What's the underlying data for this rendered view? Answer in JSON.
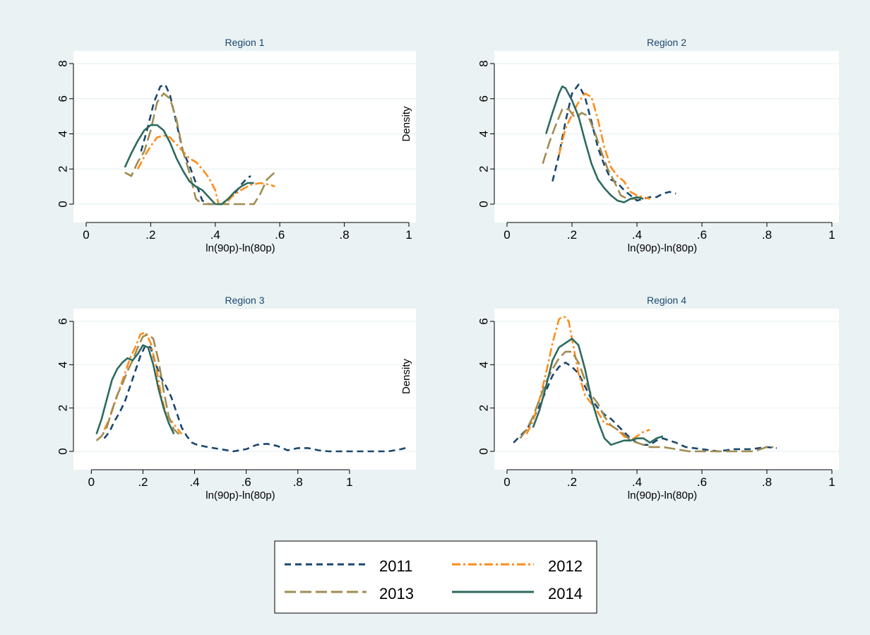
{
  "chart_data": [
    {
      "type": "line",
      "title": "Region 1",
      "xlabel": "ln(90p)-ln(80p)",
      "ylabel": "",
      "xlim": [
        0,
        1
      ],
      "ylim": [
        0,
        8
      ],
      "xticks": [
        0,
        0.2,
        0.4,
        0.6,
        0.8,
        1
      ],
      "xtick_labels": [
        "0",
        ".2",
        ".4",
        ".6",
        ".8",
        "1"
      ],
      "yticks": [
        0,
        2,
        4,
        6,
        8
      ],
      "ytick_labels": [
        "0",
        "2",
        "4",
        "6",
        "8"
      ],
      "grid": true,
      "series": [
        {
          "name": "2011",
          "x": [
            0.17,
            0.19,
            0.21,
            0.23,
            0.245,
            0.26,
            0.28,
            0.3,
            0.32,
            0.34,
            0.36,
            0.38,
            0.4,
            0.42,
            0.44,
            0.46,
            0.48,
            0.5,
            0.51
          ],
          "y": [
            3.0,
            4.3,
            5.8,
            6.7,
            6.8,
            6.2,
            4.6,
            3.0,
            2.2,
            1.2,
            0.2,
            0.0,
            0.0,
            0.0,
            0.2,
            0.6,
            1.1,
            1.5,
            1.6
          ]
        },
        {
          "name": "2012",
          "x": [
            0.16,
            0.18,
            0.2,
            0.22,
            0.24,
            0.26,
            0.28,
            0.3,
            0.32,
            0.34,
            0.36,
            0.38,
            0.4,
            0.41,
            0.43,
            0.45,
            0.48,
            0.51,
            0.54,
            0.57,
            0.585
          ],
          "y": [
            2.0,
            2.7,
            3.3,
            3.8,
            3.9,
            3.8,
            3.4,
            3.0,
            2.6,
            2.4,
            2.0,
            1.5,
            0.8,
            0.0,
            0.0,
            0.4,
            0.8,
            1.1,
            1.2,
            1.1,
            1.0
          ]
        },
        {
          "name": "2013",
          "x": [
            0.12,
            0.14,
            0.16,
            0.18,
            0.2,
            0.22,
            0.24,
            0.26,
            0.28,
            0.3,
            0.32,
            0.34,
            0.36,
            0.38,
            0.4,
            0.44,
            0.48,
            0.5,
            0.52,
            0.54,
            0.56,
            0.59
          ],
          "y": [
            1.8,
            1.6,
            2.4,
            3.0,
            4.2,
            5.8,
            6.3,
            6.0,
            4.8,
            3.0,
            1.8,
            0.3,
            0.0,
            0.0,
            0.0,
            0.0,
            0.0,
            0.0,
            0.0,
            0.6,
            1.4,
            1.9
          ]
        },
        {
          "name": "2014",
          "x": [
            0.12,
            0.14,
            0.16,
            0.18,
            0.2,
            0.22,
            0.24,
            0.26,
            0.28,
            0.3,
            0.32,
            0.34,
            0.36,
            0.38,
            0.4,
            0.42,
            0.44,
            0.46,
            0.48,
            0.5,
            0.52
          ],
          "y": [
            2.1,
            2.9,
            3.6,
            4.2,
            4.5,
            4.5,
            4.2,
            3.5,
            2.6,
            1.9,
            1.3,
            1.0,
            0.8,
            0.4,
            0.0,
            0.0,
            0.3,
            0.7,
            1.0,
            1.2,
            1.2
          ]
        }
      ]
    },
    {
      "type": "line",
      "title": "Region 2",
      "xlabel": "ln(90p)-ln(80p)",
      "ylabel": "Density",
      "xlim": [
        0,
        1
      ],
      "ylim": [
        0,
        8
      ],
      "xticks": [
        0,
        0.2,
        0.4,
        0.6,
        0.8,
        1
      ],
      "xtick_labels": [
        "0",
        ".2",
        ".4",
        ".6",
        ".8",
        "1"
      ],
      "yticks": [
        0,
        2,
        4,
        6,
        8
      ],
      "ytick_labels": [
        "0",
        "2",
        "4",
        "6",
        "8"
      ],
      "grid": true,
      "series": [
        {
          "name": "2011",
          "x": [
            0.14,
            0.16,
            0.18,
            0.2,
            0.22,
            0.24,
            0.26,
            0.28,
            0.3,
            0.32,
            0.34,
            0.36,
            0.38,
            0.4,
            0.42,
            0.44,
            0.46,
            0.48,
            0.5,
            0.52
          ],
          "y": [
            1.3,
            2.8,
            4.7,
            6.3,
            6.8,
            6.1,
            4.7,
            3.2,
            2.2,
            1.4,
            1.2,
            0.8,
            0.5,
            0.2,
            0.3,
            0.4,
            0.4,
            0.6,
            0.7,
            0.6
          ]
        },
        {
          "name": "2012",
          "x": [
            0.16,
            0.18,
            0.2,
            0.22,
            0.24,
            0.26,
            0.28,
            0.3,
            0.32,
            0.34,
            0.36,
            0.38,
            0.4,
            0.42,
            0.44
          ],
          "y": [
            2.8,
            4.3,
            5.1,
            5.8,
            6.3,
            6.1,
            4.8,
            3.2,
            2.1,
            1.6,
            1.3,
            0.7,
            0.5,
            0.4,
            0.3
          ]
        },
        {
          "name": "2013",
          "x": [
            0.11,
            0.13,
            0.15,
            0.17,
            0.19,
            0.21,
            0.23,
            0.25,
            0.27,
            0.29,
            0.31,
            0.33,
            0.35,
            0.37,
            0.39,
            0.41
          ],
          "y": [
            2.3,
            3.5,
            4.5,
            5.4,
            5.4,
            4.9,
            5.2,
            5.0,
            4.1,
            3.0,
            2.0,
            1.3,
            0.5,
            0.3,
            0.3,
            0.4
          ]
        },
        {
          "name": "2014",
          "x": [
            0.12,
            0.14,
            0.16,
            0.17,
            0.18,
            0.2,
            0.22,
            0.24,
            0.26,
            0.28,
            0.3,
            0.32,
            0.34,
            0.36,
            0.38,
            0.4,
            0.42
          ],
          "y": [
            4.0,
            5.2,
            6.3,
            6.7,
            6.6,
            5.9,
            5.0,
            3.6,
            2.3,
            1.4,
            0.9,
            0.5,
            0.2,
            0.1,
            0.3,
            0.4,
            0.3
          ]
        }
      ]
    },
    {
      "type": "line",
      "title": "Region 3",
      "xlabel": "ln(90p)-ln(80p)",
      "ylabel": "",
      "xlim": [
        -0.02,
        1.23
      ],
      "ylim": [
        0,
        6
      ],
      "xticks": [
        0,
        0.2,
        0.4,
        0.6,
        0.8,
        1
      ],
      "xtick_labels": [
        "0",
        ".2",
        ".4",
        ".6",
        ".8",
        "1"
      ],
      "yticks": [
        0,
        2,
        4,
        6
      ],
      "ytick_labels": [
        "0",
        "2",
        "4",
        "6"
      ],
      "grid": true,
      "series": [
        {
          "name": "2011",
          "x": [
            0.05,
            0.07,
            0.09,
            0.11,
            0.13,
            0.15,
            0.17,
            0.19,
            0.21,
            0.23,
            0.25,
            0.27,
            0.29,
            0.31,
            0.33,
            0.35,
            0.37,
            0.39,
            0.41,
            0.45,
            0.5,
            0.55,
            0.6,
            0.64,
            0.68,
            0.72,
            0.76,
            0.8,
            0.84,
            0.88,
            0.92,
            0.96,
            1.0,
            1.05,
            1.1,
            1.15,
            1.2,
            1.23
          ],
          "y": [
            0.6,
            0.9,
            1.4,
            1.8,
            2.3,
            3.0,
            3.7,
            4.4,
            4.9,
            4.8,
            4.0,
            3.4,
            3.0,
            2.5,
            1.8,
            1.1,
            0.7,
            0.4,
            0.3,
            0.2,
            0.1,
            0.0,
            0.1,
            0.3,
            0.35,
            0.25,
            0.05,
            0.15,
            0.15,
            0.05,
            0.0,
            0.0,
            0.0,
            0.0,
            0.0,
            0.0,
            0.1,
            0.2
          ]
        },
        {
          "name": "2012",
          "x": [
            0.05,
            0.07,
            0.09,
            0.11,
            0.13,
            0.15,
            0.17,
            0.19,
            0.21,
            0.23,
            0.25,
            0.27,
            0.29,
            0.31,
            0.33,
            0.35
          ],
          "y": [
            1.0,
            1.5,
            2.2,
            2.9,
            3.6,
            4.3,
            4.8,
            5.4,
            5.5,
            5.0,
            4.0,
            2.6,
            1.7,
            1.4,
            1.1,
            0.8
          ]
        },
        {
          "name": "2013",
          "x": [
            0.02,
            0.04,
            0.06,
            0.08,
            0.1,
            0.12,
            0.14,
            0.16,
            0.18,
            0.2,
            0.22,
            0.24,
            0.26,
            0.28,
            0.3,
            0.32,
            0.34
          ],
          "y": [
            0.5,
            0.7,
            1.1,
            1.9,
            2.6,
            3.1,
            3.7,
            4.2,
            4.8,
            5.3,
            5.4,
            5.2,
            4.2,
            2.8,
            1.6,
            1.0,
            0.8
          ]
        },
        {
          "name": "2014",
          "x": [
            0.02,
            0.04,
            0.06,
            0.08,
            0.1,
            0.12,
            0.14,
            0.16,
            0.18,
            0.2,
            0.22,
            0.24,
            0.26,
            0.28,
            0.3,
            0.32
          ],
          "y": [
            0.8,
            1.5,
            2.4,
            3.3,
            3.8,
            4.1,
            4.3,
            4.2,
            4.5,
            4.9,
            4.8,
            4.0,
            2.9,
            2.0,
            1.3,
            0.8
          ]
        }
      ]
    },
    {
      "type": "line",
      "title": "Region 4",
      "xlabel": "ln(90p)-ln(80p)",
      "ylabel": "Density",
      "xlim": [
        0,
        1
      ],
      "ylim": [
        0,
        6
      ],
      "xticks": [
        0,
        0.2,
        0.4,
        0.6,
        0.8,
        1
      ],
      "xtick_labels": [
        "0",
        ".2",
        ".4",
        ".6",
        ".8",
        "1"
      ],
      "yticks": [
        0,
        2,
        4,
        6
      ],
      "ytick_labels": [
        "0",
        "2",
        "4",
        "6"
      ],
      "grid": true,
      "series": [
        {
          "name": "2011",
          "x": [
            0.02,
            0.04,
            0.06,
            0.08,
            0.1,
            0.12,
            0.14,
            0.16,
            0.18,
            0.2,
            0.22,
            0.24,
            0.26,
            0.28,
            0.3,
            0.32,
            0.34,
            0.36,
            0.38,
            0.4,
            0.42,
            0.44,
            0.46,
            0.48,
            0.5,
            0.52,
            0.55,
            0.6,
            0.65,
            0.7,
            0.75,
            0.8,
            0.83
          ],
          "y": [
            0.4,
            0.7,
            1.0,
            1.5,
            2.1,
            2.8,
            3.5,
            3.9,
            4.1,
            3.9,
            3.6,
            3.0,
            2.4,
            2.0,
            1.7,
            1.5,
            1.2,
            0.9,
            0.6,
            0.4,
            0.3,
            0.3,
            0.5,
            0.6,
            0.5,
            0.4,
            0.2,
            0.1,
            0.0,
            0.1,
            0.1,
            0.2,
            0.15
          ]
        },
        {
          "name": "2012",
          "x": [
            0.06,
            0.08,
            0.1,
            0.12,
            0.14,
            0.16,
            0.17,
            0.18,
            0.19,
            0.2,
            0.22,
            0.24,
            0.26,
            0.28,
            0.3,
            0.32,
            0.34,
            0.36,
            0.38,
            0.4,
            0.42,
            0.44
          ],
          "y": [
            0.8,
            1.4,
            2.4,
            3.6,
            5.0,
            6.1,
            6.2,
            6.2,
            6.0,
            5.2,
            3.6,
            2.6,
            2.2,
            1.8,
            1.3,
            1.2,
            1.0,
            0.7,
            0.5,
            0.7,
            0.9,
            1.0
          ]
        },
        {
          "name": "2013",
          "x": [
            0.04,
            0.06,
            0.08,
            0.1,
            0.12,
            0.14,
            0.16,
            0.18,
            0.2,
            0.22,
            0.24,
            0.26,
            0.28,
            0.3,
            0.32,
            0.34,
            0.36,
            0.38,
            0.4,
            0.44,
            0.48,
            0.52,
            0.56,
            0.6,
            0.64,
            0.68,
            0.72,
            0.76,
            0.8,
            0.82
          ],
          "y": [
            0.6,
            1.0,
            1.6,
            2.4,
            3.2,
            3.8,
            4.3,
            4.6,
            4.6,
            4.1,
            3.3,
            2.6,
            2.2,
            1.6,
            1.2,
            1.0,
            0.8,
            0.5,
            0.4,
            0.2,
            0.2,
            0.1,
            0.0,
            0.0,
            0.0,
            0.0,
            0.0,
            0.0,
            0.2,
            0.2
          ]
        },
        {
          "name": "2014",
          "x": [
            0.08,
            0.1,
            0.12,
            0.14,
            0.16,
            0.18,
            0.2,
            0.22,
            0.24,
            0.26,
            0.28,
            0.3,
            0.32,
            0.34,
            0.36,
            0.38,
            0.4,
            0.42,
            0.44,
            0.46,
            0.48
          ],
          "y": [
            1.1,
            1.9,
            3.0,
            4.2,
            4.8,
            5.0,
            5.2,
            4.9,
            3.8,
            2.4,
            1.4,
            0.6,
            0.3,
            0.4,
            0.5,
            0.5,
            0.6,
            0.6,
            0.4,
            0.6,
            0.7
          ]
        }
      ]
    }
  ],
  "legend": {
    "placement": "bottom-center",
    "items": [
      {
        "label": "2011",
        "color": "#1a476f"
      },
      {
        "label": "2012",
        "color": "#ff8c1a"
      },
      {
        "label": "2013",
        "color": "#a08c52"
      },
      {
        "label": "2014",
        "color": "#2d6b5f"
      }
    ]
  },
  "colors": {
    "background": "#eaf2f3",
    "plot_area": "#ffffff",
    "title": "#1a476f"
  }
}
